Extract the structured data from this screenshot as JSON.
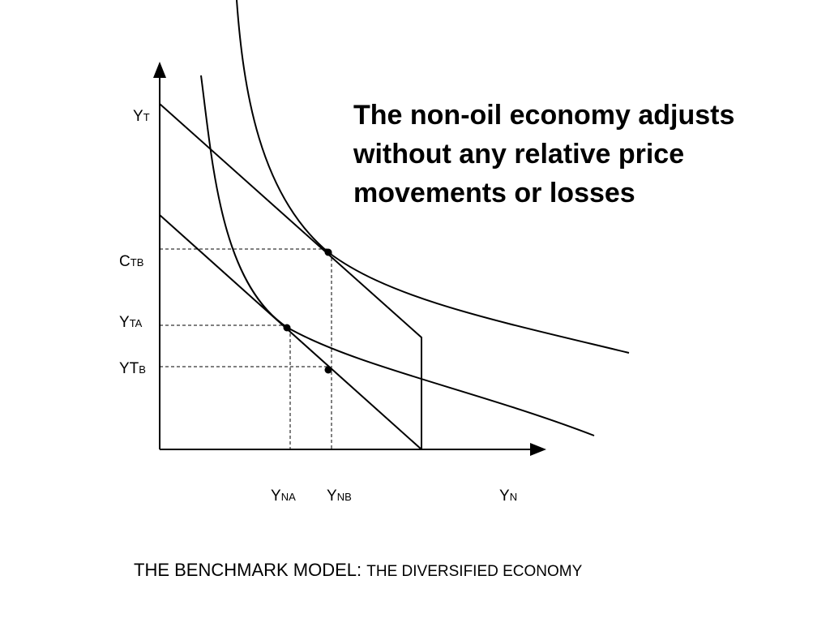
{
  "headline": {
    "lines": [
      "The non-oil economy adjusts",
      "without any relative price",
      "movements or losses"
    ]
  },
  "caption": {
    "main": "THE BENCHMARK MODEL: ",
    "sub": "THE DIVERSIFIED ECONOMY"
  },
  "labels": {
    "yt": {
      "main": "Y",
      "sub": "T"
    },
    "ct_b": {
      "main": "C",
      "sub": "T",
      "sub2": "B"
    },
    "yt_a": {
      "main": "Y",
      "sub": "T",
      "sub2": "A"
    },
    "yt_b": {
      "main": "YT",
      "sub": "B"
    },
    "yn_a": {
      "main": "Y",
      "sub": "N",
      "sub2": "A"
    },
    "yn_b": {
      "main": "Y",
      "sub": "N",
      "sub2": "B"
    },
    "yn": {
      "main": "Y",
      "sub": "N"
    }
  },
  "colors": {
    "line": "#000000",
    "background": "#ffffff"
  }
}
